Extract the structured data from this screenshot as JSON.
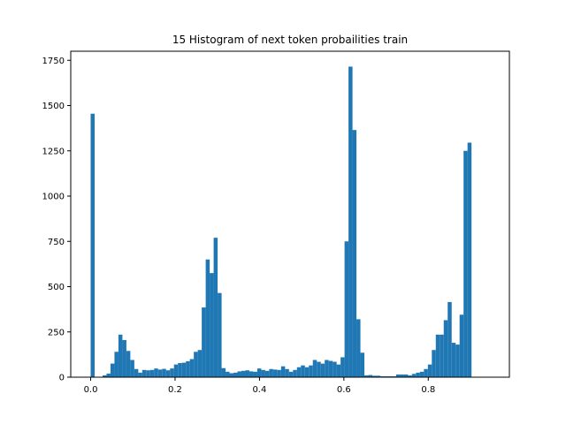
{
  "chart_data": {
    "type": "bar",
    "title": "15 Histogram of next token probailities train",
    "xlabel": "",
    "ylabel": "",
    "xlim": [
      -0.0472,
      0.9922
    ],
    "ylim": [
      0,
      1800
    ],
    "xticks": [
      0.0,
      0.2,
      0.4,
      0.6,
      0.8
    ],
    "xtick_labels": [
      "0.0",
      "0.2",
      "0.4",
      "0.6",
      "0.8"
    ],
    "yticks": [
      0,
      250,
      500,
      750,
      1000,
      1250,
      1500,
      1750
    ],
    "ytick_labels": [
      "0",
      "250",
      "500",
      "750",
      "1000",
      "1250",
      "1500",
      "1750"
    ],
    "bin_start": 0.0,
    "bin_width": 0.0094,
    "bar_color": "#1f77b4",
    "values": [
      1455,
      0,
      0,
      10,
      20,
      75,
      140,
      235,
      205,
      145,
      95,
      45,
      25,
      40,
      38,
      40,
      48,
      42,
      46,
      38,
      48,
      70,
      78,
      80,
      88,
      100,
      140,
      150,
      385,
      650,
      575,
      770,
      465,
      50,
      30,
      22,
      25,
      32,
      35,
      38,
      32,
      30,
      48,
      40,
      35,
      45,
      42,
      40,
      60,
      45,
      30,
      40,
      55,
      65,
      55,
      65,
      95,
      85,
      75,
      95,
      90,
      85,
      70,
      110,
      750,
      1715,
      1365,
      320,
      135,
      10,
      12,
      8,
      8,
      5,
      5,
      5,
      5,
      15,
      15,
      15,
      10,
      18,
      25,
      30,
      45,
      70,
      150,
      235,
      235,
      315,
      415,
      190,
      180,
      345,
      1250,
      1295
    ]
  }
}
